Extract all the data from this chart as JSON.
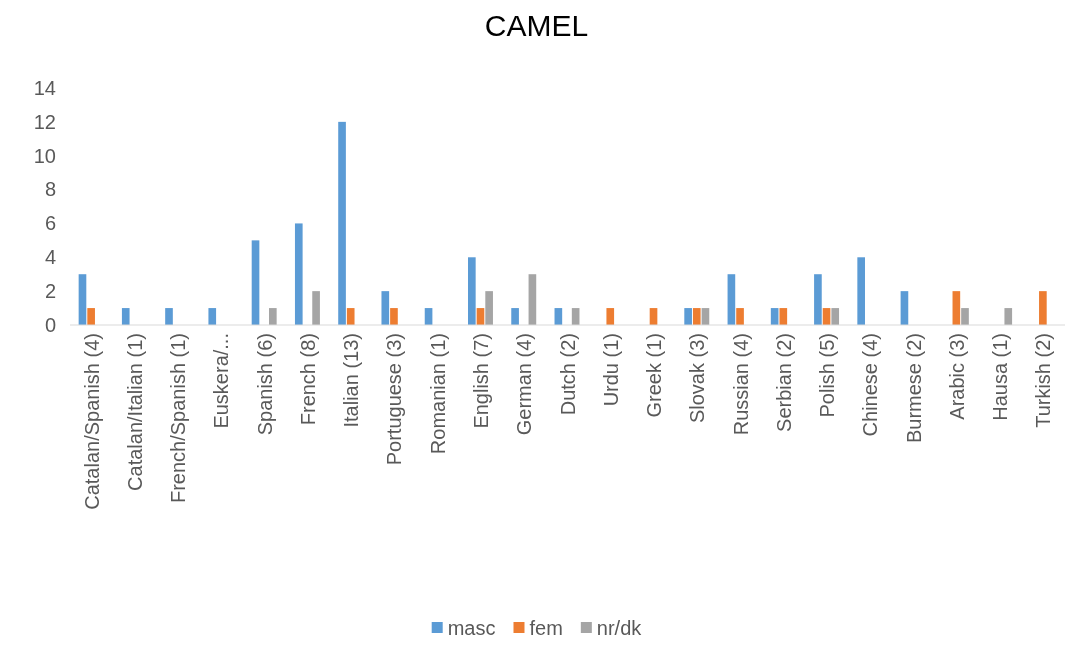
{
  "chart_data": {
    "type": "bar",
    "title": "CAMEL",
    "categories": [
      "Catalan/Spanish (4)",
      "Catalan/Italian (1)",
      "French/Spanish (1)",
      "Euskera/...",
      "Spanish (6)",
      "French (8)",
      "Italian (13)",
      "Portuguese (3)",
      "Romanian (1)",
      "English (7)",
      "German (4)",
      "Dutch (2)",
      "Urdu (1)",
      "Greek (1)",
      "Slovak (3)",
      "Russian (4)",
      "Serbian (2)",
      "Polish (5)",
      "Chinese (4)",
      "Burmese (2)",
      "Arabic (3)",
      "Hausa (1)",
      "Turkish (2)"
    ],
    "series": [
      {
        "name": "masc",
        "color": "#5b9bd5",
        "values": [
          3,
          1,
          1,
          1,
          5,
          6,
          12,
          2,
          1,
          4,
          1,
          1,
          0,
          0,
          1,
          3,
          1,
          3,
          4,
          2,
          0,
          0,
          0
        ]
      },
      {
        "name": "fem",
        "color": "#ed7d31",
        "values": [
          1,
          0,
          0,
          0,
          0,
          0,
          1,
          1,
          0,
          1,
          0,
          0,
          1,
          1,
          1,
          1,
          1,
          1,
          0,
          0,
          2,
          0,
          2
        ]
      },
      {
        "name": "nr/dk",
        "color": "#a5a5a5",
        "values": [
          0,
          0,
          0,
          0,
          1,
          2,
          0,
          0,
          0,
          2,
          3,
          1,
          0,
          0,
          1,
          0,
          0,
          1,
          0,
          0,
          1,
          1,
          0
        ]
      }
    ],
    "ylim": [
      0,
      14
    ],
    "yticks": [
      0,
      2,
      4,
      6,
      8,
      10,
      12,
      14
    ],
    "grid": false,
    "legend": "bottom"
  }
}
